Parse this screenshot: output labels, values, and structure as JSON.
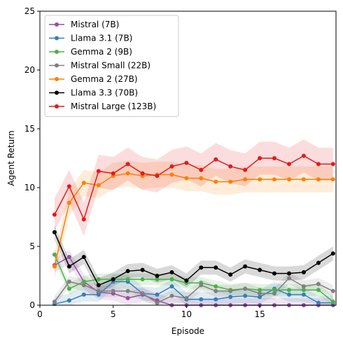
{
  "chart_data": {
    "type": "line",
    "title": "",
    "xlabel": "Episode",
    "ylabel": "Agent Return",
    "xlim": [
      0,
      20.2
    ],
    "ylim": [
      0,
      25
    ],
    "xticks": [
      0,
      5,
      10,
      15
    ],
    "yticks": [
      0,
      5,
      10,
      15,
      20,
      25
    ],
    "grid": false,
    "legend_position": "top-left",
    "x": [
      1,
      2,
      3,
      4,
      5,
      6,
      7,
      8,
      9,
      10,
      11,
      12,
      13,
      14,
      15,
      16,
      17,
      18,
      19,
      20
    ],
    "series": [
      {
        "name": "Mistral (7B)",
        "color": "#984ea3",
        "values": [
          3.4,
          4.1,
          2.0,
          1.1,
          1.0,
          0.6,
          0.9,
          0.4,
          0.0,
          0.0,
          0.0,
          0.0,
          0.0,
          0.0,
          0.0,
          0.0,
          0.0,
          0.0,
          0.0,
          0.0
        ],
        "band": 0.6
      },
      {
        "name": "Llama 3.1 (7B)",
        "color": "#377eb8",
        "values": [
          0.1,
          0.4,
          0.9,
          0.9,
          2.0,
          2.0,
          1.0,
          0.9,
          1.6,
          0.5,
          0.5,
          0.5,
          0.7,
          0.8,
          0.7,
          1.4,
          0.9,
          0.9,
          0.2,
          0.2
        ],
        "band": 0.6
      },
      {
        "name": "Gemma 2 (9B)",
        "color": "#4daf4a",
        "values": [
          4.3,
          1.4,
          2.0,
          2.2,
          2.2,
          2.2,
          2.2,
          2.2,
          2.2,
          1.9,
          1.9,
          1.6,
          1.3,
          1.4,
          1.3,
          1.3,
          1.3,
          1.3,
          1.3,
          0.3
        ],
        "band": 0.5
      },
      {
        "name": "Mistral Small (22B)",
        "color": "#808080",
        "values": [
          0.3,
          2.0,
          1.7,
          1.2,
          1.2,
          1.2,
          1.0,
          0.2,
          0.8,
          0.6,
          1.7,
          1.2,
          1.2,
          1.4,
          1.0,
          1.0,
          2.3,
          1.6,
          1.8,
          1.2
        ],
        "band": 0.5
      },
      {
        "name": "Gemma 2 (27B)",
        "color": "#ff7f00",
        "values": [
          3.3,
          8.7,
          10.4,
          10.2,
          11.0,
          11.2,
          11.0,
          11.1,
          11.1,
          10.8,
          10.8,
          10.5,
          10.5,
          10.7,
          10.7,
          10.7,
          10.7,
          10.7,
          10.7,
          10.7
        ],
        "band": 1.1
      },
      {
        "name": "Llama 3.3 (70B)",
        "color": "#000000",
        "values": [
          6.2,
          3.3,
          4.1,
          1.7,
          2.2,
          2.9,
          3.0,
          2.5,
          2.8,
          2.1,
          3.2,
          3.2,
          2.6,
          3.3,
          3.0,
          2.7,
          2.7,
          2.8,
          3.6,
          4.4
        ],
        "band": 0.6
      },
      {
        "name": "Mistral Large (123B)",
        "color": "#e41a1c",
        "values": [
          7.7,
          10.1,
          7.3,
          11.4,
          11.2,
          12.0,
          11.2,
          11.0,
          11.8,
          12.1,
          11.5,
          12.4,
          11.8,
          11.5,
          12.5,
          12.5,
          12.0,
          12.7,
          12.0,
          12.0
        ],
        "band": 1.4
      }
    ]
  }
}
